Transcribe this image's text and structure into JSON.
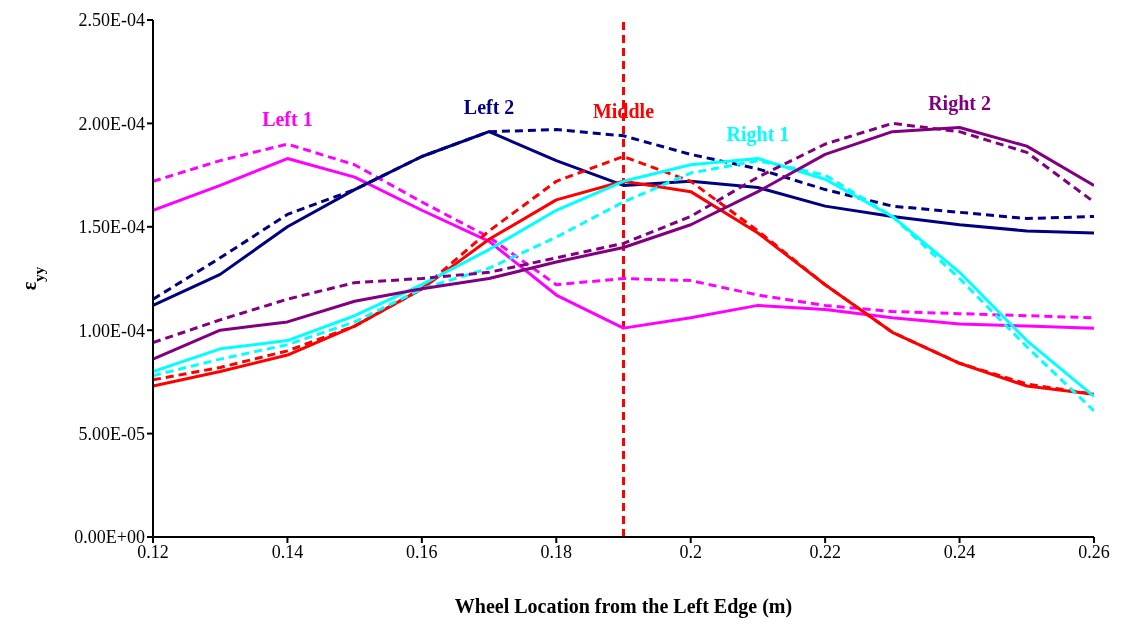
{
  "chart_data": {
    "type": "line",
    "xlabel": "Wheel Location from the Left Edge (m)",
    "ylabel": "ε$_{yy}$",
    "x": [
      0.12,
      0.13,
      0.14,
      0.15,
      0.16,
      0.17,
      0.18,
      0.19,
      0.2,
      0.21,
      0.22,
      0.23,
      0.24,
      0.25,
      0.26
    ],
    "series": [
      {
        "name": "Left 1",
        "color": "#ff00ff",
        "line_style": "solid",
        "values": [
          0.000158,
          0.00017,
          0.000183,
          0.000174,
          0.000158,
          0.000143,
          0.000117,
          0.000101,
          0.000106,
          0.000112,
          0.00011,
          0.000106,
          0.000103,
          0.000102,
          0.000101
        ]
      },
      {
        "color": "#ff00ff",
        "line_style": "dashed",
        "values": [
          0.000172,
          0.000182,
          0.00019,
          0.00018,
          0.000162,
          0.000145,
          0.000122,
          0.000125,
          0.000124,
          0.000117,
          0.000112,
          0.000109,
          0.000108,
          0.000107,
          0.000106
        ]
      },
      {
        "name": "Left 2",
        "color": "#000080",
        "line_style": "solid",
        "values": [
          0.000112,
          0.000127,
          0.00015,
          0.000168,
          0.000184,
          0.000196,
          0.000182,
          0.00017,
          0.000172,
          0.000169,
          0.00016,
          0.000155,
          0.000151,
          0.000148,
          0.000147
        ]
      },
      {
        "color": "#000080",
        "line_style": "dashed",
        "values": [
          0.000115,
          0.000135,
          0.000156,
          0.000168,
          0.000184,
          0.000196,
          0.000197,
          0.000194,
          0.000185,
          0.000178,
          0.000168,
          0.00016,
          0.000157,
          0.000154,
          0.000155
        ]
      },
      {
        "name": "Middle",
        "color": "#ff0000",
        "line_style": "solid",
        "values": [
          7.3e-05,
          8e-05,
          8.8e-05,
          0.000102,
          0.00012,
          0.000144,
          0.000163,
          0.000172,
          0.000167,
          0.000147,
          0.000122,
          9.9e-05,
          8.4e-05,
          7.3e-05,
          6.9e-05
        ]
      },
      {
        "color": "#ff0000",
        "line_style": "dashed",
        "values": [
          7.6e-05,
          8.2e-05,
          9e-05,
          0.000102,
          0.00012,
          0.000148,
          0.000172,
          0.000184,
          0.000172,
          0.000148,
          0.000122,
          9.9e-05,
          8.4e-05,
          7.4e-05,
          6.9e-05
        ]
      },
      {
        "name": "Right 1",
        "color": "#00ffff",
        "line_style": "solid",
        "values": [
          8e-05,
          9.1e-05,
          9.5e-05,
          0.000107,
          0.000122,
          0.000139,
          0.000158,
          0.000172,
          0.00018,
          0.000183,
          0.000173,
          0.000155,
          0.000128,
          9.5e-05,
          6.8e-05
        ]
      },
      {
        "color": "#00ffff",
        "line_style": "dashed",
        "values": [
          7.8e-05,
          8.6e-05,
          9.3e-05,
          0.000104,
          0.00012,
          0.00013,
          0.000145,
          0.000162,
          0.000176,
          0.000182,
          0.000175,
          0.000155,
          0.000125,
          9.2e-05,
          6.1e-05
        ]
      },
      {
        "name": "Right 2",
        "color": "#800080",
        "line_style": "solid",
        "values": [
          8.6e-05,
          0.0001,
          0.000104,
          0.000114,
          0.00012,
          0.000125,
          0.000133,
          0.00014,
          0.000151,
          0.000167,
          0.000185,
          0.000196,
          0.000198,
          0.000189,
          0.00017
        ]
      },
      {
        "color": "#800080",
        "line_style": "dashed",
        "values": [
          9.4e-05,
          0.000105,
          0.000115,
          0.000123,
          0.000125,
          0.000128,
          0.000135,
          0.000142,
          0.000155,
          0.000174,
          0.00019,
          0.0002,
          0.000196,
          0.000186,
          0.000162
        ]
      }
    ],
    "ref_lines": [
      {
        "axis": "x",
        "value": 0.19,
        "color": "#ff0000",
        "line_style": "dashed"
      }
    ],
    "xlim": [
      0.12,
      0.26
    ],
    "xticks": [
      0.12,
      0.14,
      0.16,
      0.18,
      0.2,
      0.22,
      0.24,
      0.26
    ],
    "ylim": [
      0,
      0.00025
    ],
    "yticks": [
      {
        "value": 0,
        "label": "0.00E+00"
      },
      {
        "value": 5e-05,
        "label": "5.00E-05"
      },
      {
        "value": 0.0001,
        "label": "1.00E-04"
      },
      {
        "value": 0.00015,
        "label": "1.50E-04"
      },
      {
        "value": 0.0002,
        "label": "2.00E-04"
      },
      {
        "value": 0.00025,
        "label": "2.50E-04"
      }
    ],
    "grid": false,
    "legend": false,
    "marker": "none"
  }
}
